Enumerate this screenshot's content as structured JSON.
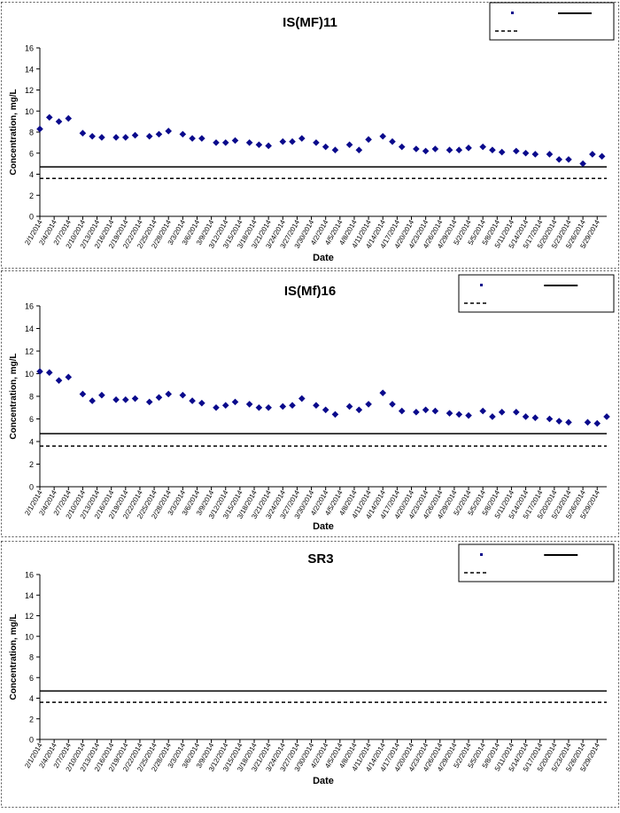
{
  "chart_data": [
    {
      "type": "scatter",
      "title": "IS(MF)11",
      "xlabel": "Date",
      "ylabel": "Concentration, mg/L",
      "ylim": [
        0,
        16
      ],
      "yticks": [
        0,
        2,
        4,
        6,
        8,
        10,
        12,
        14,
        16
      ],
      "xlim": [
        "2/1/2014",
        "5/31/2014"
      ],
      "xtick_labels": [
        "2/1/2014",
        "2/4/2014",
        "2/7/2014",
        "2/10/2014",
        "2/13/2014",
        "2/16/2014",
        "2/19/2014",
        "2/22/2014",
        "2/25/2014",
        "2/28/2014",
        "3/3/2014",
        "3/6/2014",
        "3/9/2014",
        "3/12/2014",
        "3/15/2014",
        "3/18/2014",
        "3/21/2014",
        "3/24/2014",
        "3/27/2014",
        "3/30/2014",
        "4/2/2014",
        "4/5/2014",
        "4/8/2014",
        "4/11/2014",
        "4/14/2014",
        "4/17/2014",
        "4/20/2014",
        "4/23/2014",
        "4/26/2014",
        "4/29/2014",
        "5/2/2014",
        "5/5/2014",
        "5/8/2014",
        "5/11/2014",
        "5/14/2014",
        "5/17/2014",
        "5/20/2014",
        "5/23/2014",
        "5/26/2014",
        "5/29/2014"
      ],
      "grid": false,
      "legend_position": "top-right",
      "series": [
        {
          "color": "#0a0a8c",
          "points": [
            [
              "2/1/2014",
              8.3
            ],
            [
              "2/3/2014",
              9.4
            ],
            [
              "2/5/2014",
              9.0
            ],
            [
              "2/7/2014",
              9.3
            ],
            [
              "2/10/2014",
              7.9
            ],
            [
              "2/12/2014",
              7.6
            ],
            [
              "2/14/2014",
              7.5
            ],
            [
              "2/17/2014",
              7.5
            ],
            [
              "2/19/2014",
              7.5
            ],
            [
              "2/21/2014",
              7.7
            ],
            [
              "2/24/2014",
              7.6
            ],
            [
              "2/26/2014",
              7.8
            ],
            [
              "2/28/2014",
              8.1
            ],
            [
              "3/3/2014",
              7.8
            ],
            [
              "3/5/2014",
              7.4
            ],
            [
              "3/7/2014",
              7.4
            ],
            [
              "3/10/2014",
              7.0
            ],
            [
              "3/12/2014",
              7.0
            ],
            [
              "3/14/2014",
              7.2
            ],
            [
              "3/17/2014",
              7.0
            ],
            [
              "3/19/2014",
              6.8
            ],
            [
              "3/21/2014",
              6.7
            ],
            [
              "3/24/2014",
              7.1
            ],
            [
              "3/26/2014",
              7.1
            ],
            [
              "3/28/2014",
              7.4
            ],
            [
              "3/31/2014",
              7.0
            ],
            [
              "4/2/2014",
              6.6
            ],
            [
              "4/4/2014",
              6.3
            ],
            [
              "4/7/2014",
              6.8
            ],
            [
              "4/9/2014",
              6.3
            ],
            [
              "4/11/2014",
              7.3
            ],
            [
              "4/14/2014",
              7.6
            ],
            [
              "4/16/2014",
              7.1
            ],
            [
              "4/18/2014",
              6.6
            ],
            [
              "4/21/2014",
              6.4
            ],
            [
              "4/23/2014",
              6.2
            ],
            [
              "4/25/2014",
              6.4
            ],
            [
              "4/28/2014",
              6.3
            ],
            [
              "4/30/2014",
              6.3
            ],
            [
              "5/2/2014",
              6.5
            ],
            [
              "5/5/2014",
              6.6
            ],
            [
              "5/7/2014",
              6.3
            ],
            [
              "5/9/2014",
              6.1
            ],
            [
              "5/12/2014",
              6.2
            ],
            [
              "5/14/2014",
              6.0
            ],
            [
              "5/16/2014",
              5.9
            ],
            [
              "5/19/2014",
              5.9
            ],
            [
              "5/21/2014",
              5.4
            ],
            [
              "5/23/2014",
              5.4
            ],
            [
              "5/26/2014",
              5.0
            ],
            [
              "5/28/2014",
              5.9
            ],
            [
              "5/30/2014",
              5.7
            ]
          ]
        }
      ],
      "hlines": [
        {
          "y": 4.7,
          "style": "solid"
        },
        {
          "y": 3.6,
          "style": "dashed"
        }
      ]
    },
    {
      "type": "scatter",
      "title": "IS(Mf)16",
      "xlabel": "Date",
      "ylabel": "Concentration, mg/L",
      "ylim": [
        0,
        16
      ],
      "yticks": [
        0,
        2,
        4,
        6,
        8,
        10,
        12,
        14,
        16
      ],
      "xlim": [
        "2/1/2014",
        "5/31/2014"
      ],
      "xtick_labels": [
        "2/1/2014",
        "2/4/2014",
        "2/7/2014",
        "2/10/2014",
        "2/13/2014",
        "2/16/2014",
        "2/19/2014",
        "2/22/2014",
        "2/25/2014",
        "2/28/2014",
        "3/3/2014",
        "3/6/2014",
        "3/9/2014",
        "3/12/2014",
        "3/15/2014",
        "3/18/2014",
        "3/21/2014",
        "3/24/2014",
        "3/27/2014",
        "3/30/2014",
        "4/2/2014",
        "4/5/2014",
        "4/8/2014",
        "4/11/2014",
        "4/14/2014",
        "4/17/2014",
        "4/20/2014",
        "4/23/2014",
        "4/26/2014",
        "4/29/2014",
        "5/2/2014",
        "5/5/2014",
        "5/8/2014",
        "5/11/2014",
        "5/14/2014",
        "5/17/2014",
        "5/20/2014",
        "5/23/2014",
        "5/26/2014",
        "5/29/2014"
      ],
      "grid": false,
      "legend_position": "top-right",
      "series": [
        {
          "color": "#0a0a8c",
          "points": [
            [
              "2/1/2014",
              10.2
            ],
            [
              "2/3/2014",
              10.1
            ],
            [
              "2/5/2014",
              9.4
            ],
            [
              "2/7/2014",
              9.7
            ],
            [
              "2/10/2014",
              8.2
            ],
            [
              "2/12/2014",
              7.6
            ],
            [
              "2/14/2014",
              8.1
            ],
            [
              "2/17/2014",
              7.7
            ],
            [
              "2/19/2014",
              7.7
            ],
            [
              "2/21/2014",
              7.8
            ],
            [
              "2/24/2014",
              7.5
            ],
            [
              "2/26/2014",
              7.9
            ],
            [
              "2/28/2014",
              8.2
            ],
            [
              "3/3/2014",
              8.1
            ],
            [
              "3/5/2014",
              7.6
            ],
            [
              "3/7/2014",
              7.4
            ],
            [
              "3/10/2014",
              7.0
            ],
            [
              "3/12/2014",
              7.2
            ],
            [
              "3/14/2014",
              7.5
            ],
            [
              "3/17/2014",
              7.3
            ],
            [
              "3/19/2014",
              7.0
            ],
            [
              "3/21/2014",
              7.0
            ],
            [
              "3/24/2014",
              7.1
            ],
            [
              "3/26/2014",
              7.2
            ],
            [
              "3/28/2014",
              7.8
            ],
            [
              "3/31/2014",
              7.2
            ],
            [
              "4/2/2014",
              6.8
            ],
            [
              "4/4/2014",
              6.4
            ],
            [
              "4/7/2014",
              7.1
            ],
            [
              "4/9/2014",
              6.8
            ],
            [
              "4/11/2014",
              7.3
            ],
            [
              "4/14/2014",
              8.3
            ],
            [
              "4/16/2014",
              7.3
            ],
            [
              "4/18/2014",
              6.7
            ],
            [
              "4/21/2014",
              6.6
            ],
            [
              "4/23/2014",
              6.8
            ],
            [
              "4/25/2014",
              6.7
            ],
            [
              "4/28/2014",
              6.5
            ],
            [
              "4/30/2014",
              6.4
            ],
            [
              "5/2/2014",
              6.3
            ],
            [
              "5/5/2014",
              6.7
            ],
            [
              "5/7/2014",
              6.2
            ],
            [
              "5/9/2014",
              6.6
            ],
            [
              "5/12/2014",
              6.6
            ],
            [
              "5/14/2014",
              6.2
            ],
            [
              "5/16/2014",
              6.1
            ],
            [
              "5/19/2014",
              6.0
            ],
            [
              "5/21/2014",
              5.8
            ],
            [
              "5/23/2014",
              5.7
            ],
            [
              "5/27/2014",
              5.7
            ],
            [
              "5/29/2014",
              5.6
            ],
            [
              "5/31/2014",
              6.2
            ]
          ]
        }
      ],
      "hlines": [
        {
          "y": 4.7,
          "style": "solid"
        },
        {
          "y": 3.6,
          "style": "dashed"
        }
      ]
    },
    {
      "type": "scatter",
      "title": "SR3",
      "xlabel": "Date",
      "ylabel": "Concentration, mg/L",
      "ylim": [
        0,
        16
      ],
      "yticks": [
        0,
        2,
        4,
        6,
        8,
        10,
        12,
        14,
        16
      ],
      "xlim": [
        "2/1/2014",
        "5/31/2014"
      ],
      "xtick_labels": [
        "2/1/2014",
        "2/4/2014",
        "2/7/2014",
        "2/10/2014",
        "2/13/2014",
        "2/16/2014",
        "2/19/2014",
        "2/22/2014",
        "2/25/2014",
        "2/28/2014",
        "3/3/2014",
        "3/6/2014",
        "3/9/2014",
        "3/12/2014",
        "3/15/2014",
        "3/18/2014",
        "3/21/2014",
        "3/24/2014",
        "3/27/2014",
        "3/30/2014",
        "4/2/2014",
        "4/5/2014",
        "4/8/2014",
        "4/11/2014",
        "4/14/2014",
        "4/17/2014",
        "4/20/2014",
        "4/23/2014",
        "4/26/2014",
        "4/29/2014",
        "5/2/2014",
        "5/5/2014",
        "5/8/2014",
        "5/11/2014",
        "5/14/2014",
        "5/17/2014",
        "5/20/2014",
        "5/23/2014",
        "5/26/2014",
        "5/29/2014"
      ],
      "grid": false,
      "legend_position": "top-right",
      "series": [
        {
          "color": "#0a0a8c",
          "points": []
        }
      ],
      "hlines": [
        {
          "y": 4.7,
          "style": "solid"
        },
        {
          "y": 3.6,
          "style": "dashed"
        }
      ]
    }
  ]
}
